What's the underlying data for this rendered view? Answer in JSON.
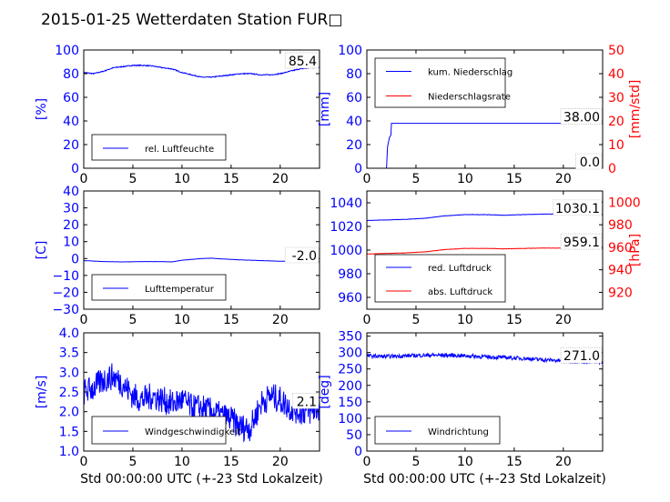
{
  "figure": {
    "title": "2015-01-25 Wetterdaten Station FUR□"
  },
  "colors": {
    "blue": "#0000ff",
    "red": "#ff0000",
    "black": "#000000"
  },
  "chart_data": [
    {
      "id": "humidity",
      "type": "line",
      "ylabel": "[%]",
      "ylim": [
        0,
        100
      ],
      "yticks": [
        "0",
        "20",
        "40",
        "60",
        "80",
        "100"
      ],
      "xlim": [
        0,
        24
      ],
      "xticks": [
        "0",
        "5",
        "10",
        "15",
        "20"
      ],
      "xlabel": "",
      "legend": "bottom-left",
      "value_label": "85.4",
      "series": [
        {
          "name": "rel. Luftfeuchte",
          "color": "#0000ff",
          "noise": 0.4,
          "x": [
            0,
            1,
            2,
            3,
            4,
            5,
            6,
            7,
            8,
            9,
            10,
            11,
            12,
            13,
            14,
            15,
            16,
            17,
            18,
            19,
            20,
            21,
            22,
            23,
            24
          ],
          "y": [
            81,
            80,
            82,
            85,
            86,
            87,
            87,
            86.5,
            85,
            84,
            81,
            79,
            77,
            77,
            78,
            79,
            80,
            80,
            79,
            79,
            80,
            82,
            84,
            85,
            85.4
          ]
        }
      ]
    },
    {
      "id": "precip",
      "type": "line",
      "ylabel": "[mm]",
      "ylim": [
        0,
        100
      ],
      "yticks": [
        "0",
        "20",
        "40",
        "60",
        "80",
        "100"
      ],
      "y2label": "[mm/std]",
      "y2lim": [
        0,
        50
      ],
      "y2ticks": [
        "0",
        "10",
        "20",
        "30",
        "40",
        "50"
      ],
      "xlim": [
        0,
        24
      ],
      "xticks": [
        "0",
        "5",
        "10",
        "15",
        "20"
      ],
      "xlabel": "",
      "legend": "top-left",
      "value_label": "38.00",
      "value_label2": "0.0",
      "series": [
        {
          "name": "kum. Niederschlag",
          "color": "#0000ff",
          "axis": "left",
          "noise": 0,
          "x": [
            0,
            2.0,
            2.1,
            2.3,
            2.45,
            2.5,
            24
          ],
          "y": [
            0,
            0,
            18,
            26,
            28,
            38,
            38
          ]
        },
        {
          "name": "Niederschlagsrate",
          "color": "#ff0000",
          "axis": "right",
          "noise": 0,
          "x": [
            0,
            24
          ],
          "y": [
            0,
            0
          ]
        }
      ]
    },
    {
      "id": "temperature",
      "type": "line",
      "ylabel": "[C]",
      "ylim": [
        -30,
        40
      ],
      "yticks": [
        "−30",
        "−20",
        "−10",
        "0",
        "10",
        "20",
        "30",
        "40"
      ],
      "xlim": [
        0,
        24
      ],
      "xticks": [
        "0",
        "5",
        "10",
        "15",
        "20"
      ],
      "xlabel": "",
      "legend": "bottom-left",
      "value_label": "-2.0",
      "series": [
        {
          "name": "Lufttemperatur",
          "color": "#0000ff",
          "noise": 0.05,
          "x": [
            0,
            2,
            4,
            6,
            8,
            9,
            10,
            11,
            12,
            13,
            14,
            16,
            18,
            20,
            22,
            24
          ],
          "y": [
            -1.2,
            -1.8,
            -2,
            -1.8,
            -1.8,
            -2,
            -1,
            -0.5,
            0,
            0.2,
            -0.2,
            -0.8,
            -1.2,
            -1.6,
            -1.8,
            -2.0
          ]
        }
      ]
    },
    {
      "id": "pressure",
      "type": "line",
      "ylabel": "",
      "ylim": [
        950,
        1050
      ],
      "yticks": [
        "960",
        "980",
        "1000",
        "1020",
        "1040"
      ],
      "y2label": "[hPa]",
      "y2lim": [
        905,
        1010
      ],
      "y2ticks": [
        "920",
        "940",
        "960",
        "980",
        "1000"
      ],
      "xlim": [
        0,
        24
      ],
      "xticks": [
        "0",
        "5",
        "10",
        "15",
        "20"
      ],
      "xlabel": "",
      "legend": "bottom-left",
      "value_label": "1030.1",
      "value_label2": "959.1",
      "series": [
        {
          "name": "red. Luftdruck",
          "color": "#0000ff",
          "axis": "left",
          "noise": 0.15,
          "x": [
            0,
            2,
            4,
            6,
            8,
            10,
            12,
            14,
            16,
            18,
            20,
            22,
            24
          ],
          "y": [
            1025,
            1025.5,
            1026,
            1027,
            1029,
            1030,
            1030,
            1029.5,
            1030,
            1030.5,
            1030.5,
            1030.3,
            1030.1
          ]
        },
        {
          "name": "abs. Luftdruck",
          "color": "#ff0000",
          "axis": "right",
          "noise": 0.15,
          "x": [
            0,
            2,
            4,
            6,
            8,
            10,
            12,
            14,
            16,
            18,
            20,
            22,
            24
          ],
          "y": [
            954,
            954.5,
            955,
            956,
            958,
            959,
            959,
            958.6,
            959,
            959.3,
            959.3,
            959.2,
            959.1
          ]
        }
      ]
    },
    {
      "id": "windspeed",
      "type": "line",
      "ylabel": "[m/s]",
      "ylim": [
        1.0,
        4.0
      ],
      "yticks": [
        "1.0",
        "1.5",
        "2.0",
        "2.5",
        "3.0",
        "3.5",
        "4.0"
      ],
      "xlim": [
        0,
        24
      ],
      "xticks": [
        "0",
        "5",
        "10",
        "15",
        "20"
      ],
      "xlabel": "Std 00:00:00 UTC (+-23 Std Lokalzeit)",
      "legend": "bottom-left",
      "value_label": "2.1",
      "series": [
        {
          "name": "Windgeschwindigkeit",
          "color": "#0000ff",
          "noise": 0.35,
          "x": [
            0,
            1,
            2,
            3,
            4,
            5,
            6,
            7,
            8,
            9,
            10,
            11,
            12,
            13,
            14,
            15,
            16,
            17,
            18,
            19,
            20,
            21,
            22,
            23,
            24
          ],
          "y": [
            2.5,
            2.6,
            2.8,
            2.9,
            2.7,
            2.4,
            2.3,
            2.4,
            2.3,
            2.2,
            2.3,
            2.1,
            2.1,
            2.0,
            1.9,
            1.8,
            1.6,
            1.6,
            2.2,
            2.4,
            2.3,
            2.1,
            2.0,
            2.0,
            2.1
          ]
        }
      ]
    },
    {
      "id": "winddir",
      "type": "line",
      "ylabel": "[deg]",
      "ylim": [
        0,
        360
      ],
      "yticks": [
        "0",
        "50",
        "100",
        "150",
        "200",
        "250",
        "300",
        "350"
      ],
      "xlim": [
        0,
        24
      ],
      "xticks": [
        "0",
        "5",
        "10",
        "15",
        "20"
      ],
      "xlabel": "Std 00:00:00 UTC (+-23 Std Lokalzeit)",
      "legend": "bottom-left",
      "value_label": "271.0",
      "series": [
        {
          "name": "Windrichtung",
          "color": "#0000ff",
          "noise": 6,
          "x": [
            0,
            2,
            4,
            6,
            8,
            10,
            12,
            14,
            16,
            18,
            20,
            22,
            24
          ],
          "y": [
            290,
            288,
            290,
            292,
            292,
            290,
            287,
            285,
            282,
            278,
            275,
            272,
            271
          ]
        }
      ]
    }
  ]
}
